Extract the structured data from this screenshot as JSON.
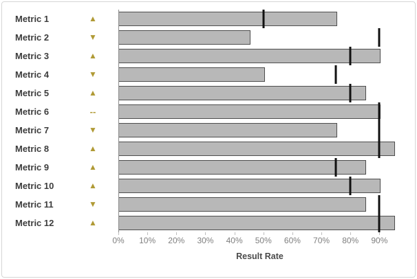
{
  "chart_data": {
    "type": "bar",
    "orientation": "horizontal",
    "title": "",
    "xlabel": "Result Rate",
    "ylabel": "",
    "xlim": [
      0,
      97.5
    ],
    "grid": false,
    "x_ticks": [
      "0%",
      "10%",
      "20%",
      "30%",
      "40%",
      "50%",
      "60%",
      "70%",
      "80%",
      "90%"
    ],
    "x_tick_values": [
      0,
      10,
      20,
      30,
      40,
      50,
      60,
      70,
      80,
      90
    ],
    "rows": [
      {
        "label": "Metric 1",
        "indicator": "up",
        "value": 75,
        "target": 50
      },
      {
        "label": "Metric 2",
        "indicator": "down",
        "value": 45,
        "target": 90
      },
      {
        "label": "Metric 3",
        "indicator": "up",
        "value": 90,
        "target": 80
      },
      {
        "label": "Metric 4",
        "indicator": "down",
        "value": 50,
        "target": 75
      },
      {
        "label": "Metric 5",
        "indicator": "up",
        "value": 85,
        "target": 80
      },
      {
        "label": "Metric 6",
        "indicator": "dash",
        "value": 90,
        "target": 90
      },
      {
        "label": "Metric 7",
        "indicator": "down",
        "value": 75,
        "target": 90
      },
      {
        "label": "Metric 8",
        "indicator": "up",
        "value": 95,
        "target": 90
      },
      {
        "label": "Metric 9",
        "indicator": "up",
        "value": 85,
        "target": 75
      },
      {
        "label": "Metric 10",
        "indicator": "up",
        "value": 90,
        "target": 80
      },
      {
        "label": "Metric 11",
        "indicator": "down",
        "value": 85,
        "target": 90
      },
      {
        "label": "Metric 12",
        "indicator": "up",
        "value": 95,
        "target": 90
      }
    ],
    "indicator_glyphs": {
      "up": "▲",
      "down": "▼",
      "dash": "--"
    },
    "colors": {
      "bar_fill": "#b8b8b8",
      "bar_border": "#4d4d4d",
      "target_line": "#111111",
      "indicator": "#b09a35",
      "axis_line": "#8c8c8c",
      "tick_text": "#7f7f7f",
      "label_text": "#3d3d3d",
      "frame_border": "#d5d5d5"
    }
  }
}
